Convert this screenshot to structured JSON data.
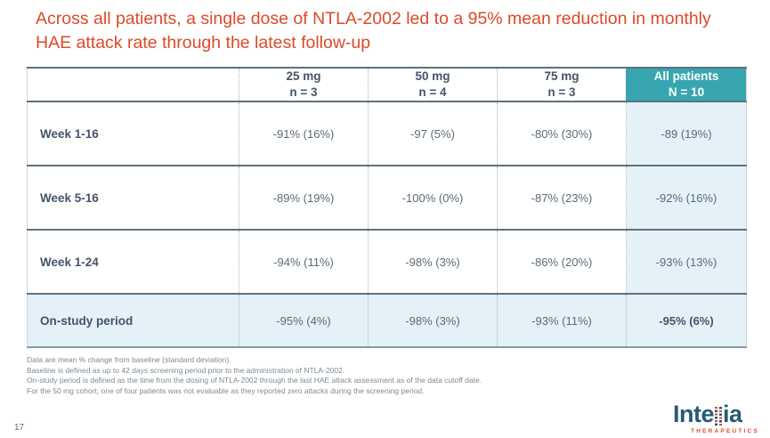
{
  "title": "Across all patients, a single dose of NTLA-2002 led to a 95% mean reduction in monthly HAE attack rate through the latest follow-up",
  "table": {
    "col_headers": [
      {
        "line1": "25 mg",
        "line2": "n = 3"
      },
      {
        "line1": "50 mg",
        "line2": "n = 4"
      },
      {
        "line1": "75 mg",
        "line2": "n = 3"
      },
      {
        "line1": "All patients",
        "line2": "N = 10"
      }
    ],
    "rows": [
      {
        "label": "Week 1-16",
        "values": [
          "-91% (16%)",
          "-97 (5%)",
          "-80% (30%)",
          "-89 (19%)"
        ]
      },
      {
        "label": "Week 5-16",
        "values": [
          "-89% (19%)",
          "-100% (0%)",
          "-87% (23%)",
          "-92% (16%)"
        ]
      },
      {
        "label": "Week 1-24",
        "values": [
          "-94% (11%)",
          "-98% (3%)",
          "-86% (20%)",
          "-93% (13%)"
        ]
      },
      {
        "label": "On-study period",
        "values": [
          "-95% (4%)",
          "-98% (3%)",
          "-93% (11%)",
          "-95% (6%)"
        ]
      }
    ]
  },
  "footnotes": [
    "Data are mean % change from baseline (standard deviation).",
    "Baseline is defined as up to 42 days screening period prior to the administration of NTLA-2002.",
    "On-study period is defined as the time from the dosing of NTLA-2002 through the last HAE attack assessment as of the data cutoff date.",
    "For the 50 mg cohort, one of four patients was not evaluable as they reported zero attacks during the screening period."
  ],
  "page_number": "17",
  "logo": {
    "prefix": "Inte",
    "suffix": "ia",
    "subtext": "THERAPEUTICS"
  },
  "colors": {
    "title_orange": "#DD4A28",
    "header_teal": "#38A6B0",
    "shaded_cell": "#E4F1F6",
    "dark_text": "#44546A",
    "value_text": "#5A6B7C",
    "logo_blue": "#265A73"
  }
}
